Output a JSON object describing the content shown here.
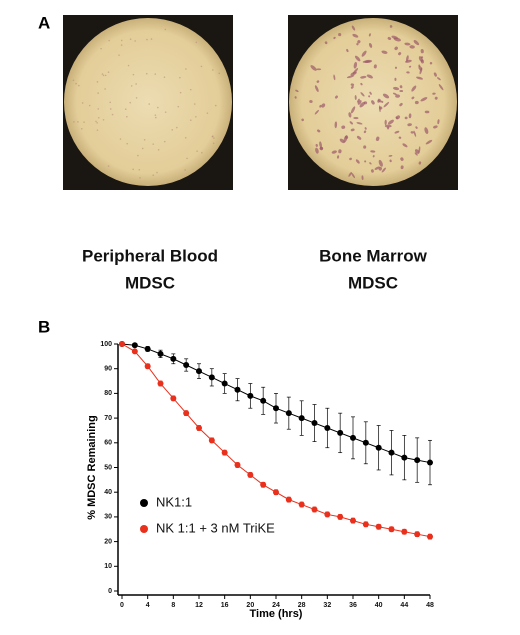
{
  "panel_a": {
    "label": "A",
    "images": [
      {
        "caption": [
          "Peripheral Blood",
          "MDSC"
        ]
      },
      {
        "caption": [
          "Bone Marrow",
          "MDSC"
        ]
      }
    ]
  },
  "chart_data": {
    "type": "line",
    "panel_label": "B",
    "x_label": "Time (hrs)",
    "y_label": "% MDSC Remaining",
    "x": [
      0,
      2,
      4,
      6,
      8,
      10,
      12,
      14,
      16,
      18,
      20,
      22,
      24,
      26,
      28,
      30,
      32,
      34,
      36,
      38,
      40,
      42,
      44,
      46,
      48
    ],
    "series": [
      {
        "name": "NK1:1",
        "color": "#000000",
        "values": [
          100,
          99.5,
          98,
          96,
          94,
          91.5,
          89,
          86.5,
          84,
          81.5,
          79,
          77,
          74,
          72,
          70,
          68,
          66,
          64,
          62,
          60,
          58,
          56,
          54,
          53,
          52
        ],
        "errors": [
          0,
          0.5,
          1,
          1.5,
          2,
          2.5,
          3,
          3.5,
          4,
          4.5,
          5,
          5.5,
          6,
          6.5,
          7,
          7.5,
          8,
          8,
          8.5,
          8.5,
          9,
          9,
          9,
          9,
          9
        ]
      },
      {
        "name": "NK 1:1 + 3 nM TriKE",
        "color": "#e8301c",
        "values": [
          100,
          97,
          91,
          84,
          78,
          72,
          66,
          61,
          56,
          51,
          47,
          43,
          40,
          37,
          35,
          33,
          31,
          30,
          28.5,
          27,
          26,
          25,
          24,
          23,
          22
        ],
        "errors": [
          0,
          0.5,
          1,
          1,
          1,
          1,
          1,
          1,
          1,
          1,
          1,
          1,
          1,
          1,
          1,
          1,
          1,
          1,
          1,
          1,
          1,
          1,
          1,
          1,
          1
        ]
      }
    ],
    "xlim": [
      0,
      48
    ],
    "xticks": [
      0,
      4,
      8,
      12,
      16,
      20,
      24,
      28,
      32,
      36,
      40,
      44,
      48
    ],
    "ylim": [
      0,
      100
    ],
    "yticks": [
      0,
      10,
      20,
      30,
      40,
      50,
      60,
      70,
      80,
      90,
      100
    ],
    "legend": "lower-left"
  }
}
